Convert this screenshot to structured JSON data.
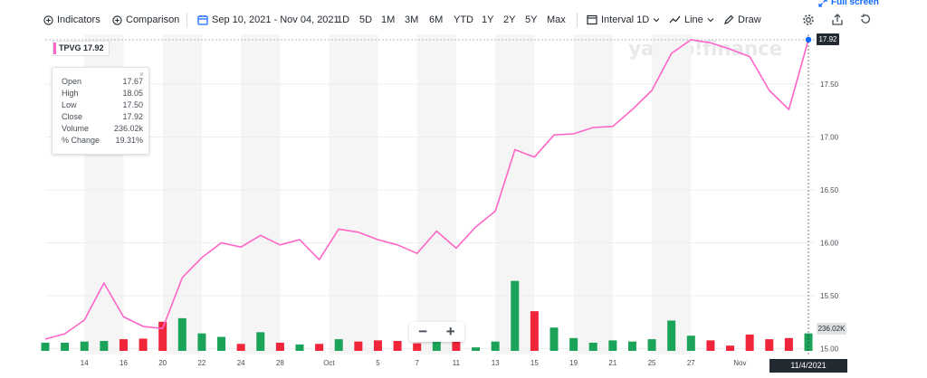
{
  "toolbar": {
    "indicators_label": "Indicators",
    "comparison_label": "Comparison",
    "date_range_label": "Sep 10, 2021 - Nov 04, 2021",
    "ranges": [
      "1D",
      "5D",
      "1M",
      "3M",
      "6M",
      "YTD",
      "1Y",
      "2Y",
      "5Y",
      "Max"
    ],
    "interval_label": "Interval",
    "interval_value": "1D",
    "chart_type_label": "Line",
    "draw_label": "Draw",
    "fullscreen_label": "Full screen",
    "icons": [
      "plus-circle-icon",
      "calendar-icon",
      "bar-chart-icon",
      "line-chart-icon",
      "pencil-icon",
      "gear-icon",
      "share-icon",
      "reset-icon",
      "expand-icon"
    ]
  },
  "watermark": "yahoo!finance",
  "ticker_badge": {
    "symbol": "TPVG",
    "price": "17.92",
    "text": "TPVG 17.92",
    "color": "#ff65c8"
  },
  "tooltip": {
    "rows": [
      {
        "label": "Open",
        "value": "17.67"
      },
      {
        "label": "High",
        "value": "18.05"
      },
      {
        "label": "Low",
        "value": "17.50"
      },
      {
        "label": "Close",
        "value": "17.92"
      },
      {
        "label": "Volume",
        "value": "236.02k"
      },
      {
        "label": "% Change",
        "value": "19.31%"
      }
    ],
    "close_symbol": "×"
  },
  "last_price_label": "17.92",
  "volume_label": "236.02K",
  "crosshair_date": "11/4/2021",
  "zoom": {
    "minus": "−",
    "plus": "+"
  },
  "colors": {
    "line": "#ff65c8",
    "up": "#1ba35a",
    "down": "#f0253a",
    "crosshair": "#0f69ff",
    "band": "#f5f5f5"
  },
  "chart_data": {
    "type": "line",
    "series": [
      {
        "name": "TPVG",
        "dates": [
          "2021-09-10",
          "2021-09-13",
          "2021-09-14",
          "2021-09-15",
          "2021-09-16",
          "2021-09-17",
          "2021-09-20",
          "2021-09-21",
          "2021-09-22",
          "2021-09-23",
          "2021-09-24",
          "2021-09-27",
          "2021-09-28",
          "2021-09-29",
          "2021-09-30",
          "2021-10-01",
          "2021-10-04",
          "2021-10-05",
          "2021-10-06",
          "2021-10-07",
          "2021-10-08",
          "2021-10-11",
          "2021-10-12",
          "2021-10-13",
          "2021-10-14",
          "2021-10-15",
          "2021-10-18",
          "2021-10-19",
          "2021-10-20",
          "2021-10-21",
          "2021-10-22",
          "2021-10-25",
          "2021-10-26",
          "2021-10-27",
          "2021-10-28",
          "2021-10-29",
          "2021-11-01",
          "2021-11-02",
          "2021-11-03",
          "2021-11-04"
        ],
        "close": [
          15.09,
          15.14,
          15.27,
          15.62,
          15.3,
          15.21,
          15.19,
          15.67,
          15.86,
          16.0,
          15.96,
          16.07,
          15.98,
          16.03,
          15.84,
          16.13,
          16.1,
          16.03,
          15.98,
          15.9,
          16.11,
          15.95,
          16.15,
          16.3,
          16.88,
          16.81,
          17.02,
          17.03,
          17.09,
          17.1,
          17.26,
          17.44,
          17.79,
          17.92,
          17.89,
          17.83,
          17.76,
          17.44,
          17.26,
          17.92
        ]
      }
    ],
    "volume": {
      "values": [
        70,
        70,
        80,
        85,
        100,
        105,
        250,
        280,
        150,
        120,
        60,
        160,
        70,
        55,
        60,
        100,
        80,
        90,
        85,
        65,
        95,
        78,
        30,
        80,
        600,
        340,
        200,
        110,
        70,
        90,
        80,
        100,
        260,
        130,
        90,
        45,
        140,
        100,
        110,
        150
      ],
      "direction": [
        "up",
        "up",
        "up",
        "up",
        "down",
        "down",
        "down",
        "up",
        "up",
        "up",
        "down",
        "up",
        "down",
        "up",
        "down",
        "up",
        "down",
        "down",
        "down",
        "down",
        "up",
        "down",
        "up",
        "up",
        "up",
        "down",
        "up",
        "up",
        "up",
        "up",
        "up",
        "up",
        "up",
        "up",
        "down",
        "down",
        "down",
        "down",
        "down",
        "up"
      ]
    },
    "y_ticks": [
      "15.00",
      "15.50",
      "16.00",
      "16.50",
      "17.00",
      "17.50"
    ],
    "ylim": [
      15.0,
      17.92
    ],
    "x_ticks": [
      {
        "label": "14",
        "index": 2
      },
      {
        "label": "16",
        "index": 4
      },
      {
        "label": "20",
        "index": 6
      },
      {
        "label": "22",
        "index": 8
      },
      {
        "label": "24",
        "index": 10
      },
      {
        "label": "28",
        "index": 12
      },
      {
        "label": "Oct",
        "index": 14.5
      },
      {
        "label": "5",
        "index": 17
      },
      {
        "label": "7",
        "index": 19
      },
      {
        "label": "11",
        "index": 21
      },
      {
        "label": "13",
        "index": 23
      },
      {
        "label": "15",
        "index": 25
      },
      {
        "label": "19",
        "index": 27
      },
      {
        "label": "21",
        "index": 29
      },
      {
        "label": "25",
        "index": 31
      },
      {
        "label": "27",
        "index": 33
      },
      {
        "label": "Nov",
        "index": 35.5
      }
    ],
    "grid": true
  }
}
